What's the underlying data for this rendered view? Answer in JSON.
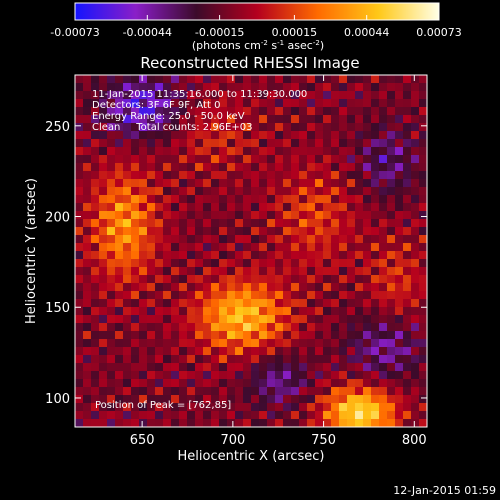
{
  "chart_data": {
    "type": "heatmap",
    "title": "Reconstructed RHESSI Image",
    "xlabel": "Heliocentric X (arcsec)",
    "ylabel": "Heliocentric Y (arcsec)",
    "xlim": [
      613,
      807
    ],
    "ylim": [
      84,
      278
    ],
    "x_ticks": [
      650,
      700,
      750,
      800
    ],
    "y_ticks": [
      100,
      150,
      200,
      250
    ],
    "colorbar": {
      "range": [
        -0.00073,
        0.00073
      ],
      "ticks": [
        "-0.00073",
        "-0.00044",
        "-0.00015",
        "0.00015",
        "0.00044",
        "0.00073"
      ],
      "tick_values": [
        -0.00073,
        -0.00044,
        -0.00015,
        0.00015,
        0.00044,
        0.00073
      ],
      "colors": [
        "#1414ff",
        "#8a1ec8",
        "#3c0a2a",
        "#b4001e",
        "#ff6a00",
        "#ffc818",
        "#ffffe6"
      ]
    },
    "units_label": {
      "prefix": "(photons cm",
      "sup1": "-2",
      "mid1": " s",
      "sup2": "-1",
      "mid2": " asec",
      "sup3": "-2",
      "suffix": ")"
    },
    "annotations": [
      "11-Jan-2015 11:35:16.000 to 11:39:30.000",
      "Detectors: 3F 6F 9F, Att 0",
      "Energy Range: 25.0 - 50.0 keV",
      "Clean     Total counts: 2.96E+03"
    ],
    "peak_label": "Position of Peak = [762,85]",
    "timestamp": "12-Jan-2015 01:59",
    "sources": [
      {
        "x": 705,
        "y": 145,
        "sx": 18,
        "sy": 14,
        "amp": 0.7
      },
      {
        "x": 640,
        "y": 195,
        "sx": 13,
        "sy": 22,
        "amp": 0.55
      },
      {
        "x": 770,
        "y": 92,
        "sx": 14,
        "sy": 10,
        "amp": 0.85
      },
      {
        "x": 745,
        "y": 200,
        "sx": 16,
        "sy": 20,
        "amp": 0.3
      },
      {
        "x": 690,
        "y": 245,
        "sx": 18,
        "sy": 16,
        "amp": 0.22
      },
      {
        "x": 790,
        "y": 160,
        "sx": 12,
        "sy": 20,
        "amp": 0.28
      }
    ],
    "cold_regions": [
      {
        "x": 650,
        "y": 260,
        "sx": 15,
        "sy": 12,
        "amp": -0.55
      },
      {
        "x": 785,
        "y": 130,
        "sx": 14,
        "sy": 14,
        "amp": -0.4
      },
      {
        "x": 725,
        "y": 110,
        "sx": 12,
        "sy": 10,
        "amp": -0.35
      },
      {
        "x": 785,
        "y": 230,
        "sx": 12,
        "sy": 14,
        "amp": -0.3
      }
    ]
  }
}
